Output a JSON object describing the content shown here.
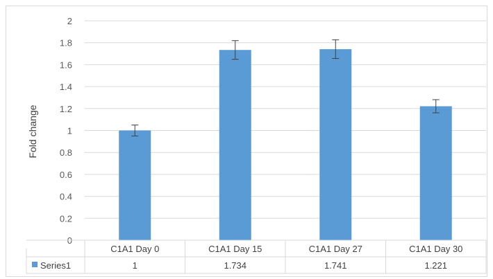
{
  "chart_data": {
    "type": "bar",
    "categories": [
      "C1A1 Day 0",
      "C1A1 Day 15",
      "C1A1 Day 27",
      "C1A1 Day 30"
    ],
    "series": [
      {
        "name": "Series1",
        "values": [
          1,
          1.734,
          1.741,
          1.221
        ],
        "value_labels": [
          "1",
          "1.734",
          "1.741",
          "1.221"
        ],
        "error": [
          0.05,
          0.085,
          0.085,
          0.06
        ],
        "color": "#5b9bd5"
      }
    ],
    "ylabel": "Fold change",
    "xlabel": "",
    "ylim": [
      0,
      2
    ],
    "yticks": [
      0,
      0.2,
      0.4,
      0.6,
      0.8,
      1,
      1.2,
      1.4,
      1.6,
      1.8,
      2
    ],
    "ytick_labels": [
      "0",
      "0.2",
      "0.4",
      "0.6",
      "0.8",
      "1",
      "1.2",
      "1.4",
      "1.6",
      "1.8",
      "2"
    ],
    "grid": true,
    "data_table": true,
    "legend": "in data table"
  }
}
